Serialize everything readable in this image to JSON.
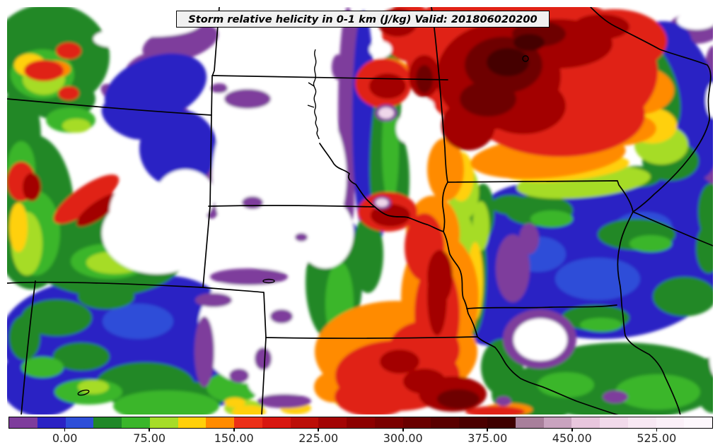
{
  "title": "Storm relative helicity in 0-1 km (J/kg) Valid: 201806020200",
  "colorbar": {
    "tick_labels": [
      "0.00",
      "75.00",
      "150.00",
      "225.00",
      "300.00",
      "375.00",
      "450.00",
      "525.00"
    ],
    "tick_values": [
      0,
      75,
      150,
      225,
      300,
      375,
      450,
      525
    ],
    "value_min": -50,
    "value_max": 575,
    "segment_step": 25,
    "segment_colors": [
      "#7E3C9C",
      "#2B22C4",
      "#2E4ED8",
      "#208828",
      "#3AB62A",
      "#A6DC28",
      "#FFD00A",
      "#FF8B00",
      "#EC3018",
      "#D81710",
      "#BC0F08",
      "#A30505",
      "#8C0000",
      "#7A0000",
      "#690000",
      "#590000",
      "#4B0000",
      "#3E0000",
      "#A87F9B",
      "#C9A3BF",
      "#E8C6DD",
      "#F2DAEB",
      "#F8E8F3",
      "#FBF0F8",
      "#FDF7FC"
    ]
  },
  "map": {
    "background_color": "#ffffff",
    "border_color": "#000000",
    "state_line_color": "#000000"
  },
  "chart_data": {
    "type": "heatmap",
    "title": "Storm relative helicity in 0-1 km (J/kg) Valid: 201806020200",
    "variable": "Storm relative helicity in 0-1 km",
    "units": "J/kg",
    "valid": "201806020200",
    "legend_position": "bottom",
    "colorbar_tick_labels": [
      "0.00",
      "75.00",
      "150.00",
      "225.00",
      "300.00",
      "375.00",
      "450.00",
      "525.00"
    ],
    "colorbar_range": [
      -50,
      575
    ],
    "colorbar_step": 25,
    "palette": [
      {
        "from": -50,
        "to": -25,
        "color": "#7E3C9C"
      },
      {
        "from": -25,
        "to": 0,
        "color": "#2B22C4"
      },
      {
        "from": 0,
        "to": 25,
        "color": "#2E4ED8"
      },
      {
        "from": 25,
        "to": 50,
        "color": "#208828"
      },
      {
        "from": 50,
        "to": 75,
        "color": "#3AB62A"
      },
      {
        "from": 75,
        "to": 100,
        "color": "#A6DC28"
      },
      {
        "from": 100,
        "to": 125,
        "color": "#FFD00A"
      },
      {
        "from": 125,
        "to": 150,
        "color": "#FF8B00"
      },
      {
        "from": 150,
        "to": 175,
        "color": "#EC3018"
      },
      {
        "from": 175,
        "to": 200,
        "color": "#D81710"
      },
      {
        "from": 200,
        "to": 225,
        "color": "#BC0F08"
      },
      {
        "from": 225,
        "to": 250,
        "color": "#A30505"
      },
      {
        "from": 250,
        "to": 275,
        "color": "#8C0000"
      },
      {
        "from": 275,
        "to": 300,
        "color": "#7A0000"
      },
      {
        "from": 300,
        "to": 325,
        "color": "#690000"
      },
      {
        "from": 325,
        "to": 350,
        "color": "#590000"
      },
      {
        "from": 350,
        "to": 375,
        "color": "#4B0000"
      },
      {
        "from": 375,
        "to": 400,
        "color": "#3E0000"
      },
      {
        "from": 400,
        "to": 425,
        "color": "#A87F9B"
      },
      {
        "from": 425,
        "to": 450,
        "color": "#C9A3BF"
      },
      {
        "from": 450,
        "to": 475,
        "color": "#E8C6DD"
      },
      {
        "from": 475,
        "to": 500,
        "color": "#F2DAEB"
      },
      {
        "from": 500,
        "to": 525,
        "color": "#F8E8F3"
      },
      {
        "from": 525,
        "to": 550,
        "color": "#FBF0F8"
      },
      {
        "from": 550,
        "to": 575,
        "color": "#FDF7FC"
      }
    ],
    "notable_features": [
      "Very high helicity (225-400+ J/kg, dark red) mass over northeast corner of domain",
      "North-south band of mixed high values along central Missouri River valley with >425 J/kg pink cores",
      "Large red/orange maximum (150-300 J/kg) over Kansas at bottom center",
      "White (below-range) areas over Wyoming, western South Dakota and western Nebraska with purple fringes",
      "Blue 0-25 J/kg field over Iowa and Colorado with scattered green patches",
      "Purple below-zero patches along eastern edge and around white minima"
    ]
  }
}
